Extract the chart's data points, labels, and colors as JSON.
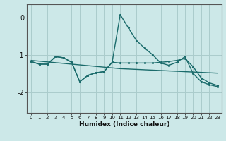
{
  "xlabel": "Humidex (Indice chaleur)",
  "background_color": "#cce8e8",
  "grid_color": "#aacccc",
  "line_color": "#1a6b6b",
  "xlim": [
    -0.5,
    23.5
  ],
  "ylim": [
    -2.55,
    0.35
  ],
  "yticks": [
    0,
    -1,
    -2
  ],
  "xticks": [
    0,
    1,
    2,
    3,
    4,
    5,
    6,
    7,
    8,
    9,
    10,
    11,
    12,
    13,
    14,
    15,
    16,
    17,
    18,
    19,
    20,
    21,
    22,
    23
  ],
  "line1_x": [
    0,
    1,
    2,
    3,
    4,
    5,
    6,
    7,
    8,
    9,
    10,
    11,
    12,
    13,
    14,
    15,
    16,
    17,
    18,
    19,
    20,
    21,
    22,
    23
  ],
  "line1_y": [
    -1.15,
    -1.17,
    -1.19,
    -1.21,
    -1.23,
    -1.25,
    -1.27,
    -1.29,
    -1.31,
    -1.33,
    -1.35,
    -1.37,
    -1.38,
    -1.39,
    -1.4,
    -1.41,
    -1.42,
    -1.43,
    -1.44,
    -1.45,
    -1.46,
    -1.47,
    -1.48,
    -1.49
  ],
  "line2_x": [
    0,
    1,
    2,
    3,
    4,
    5,
    6,
    7,
    8,
    9,
    10,
    11,
    12,
    13,
    14,
    15,
    16,
    17,
    18,
    19,
    20,
    21,
    22,
    23
  ],
  "line2_y": [
    -1.18,
    -1.25,
    -1.25,
    -1.05,
    -1.08,
    -1.2,
    -1.72,
    -1.55,
    -1.48,
    -1.45,
    -1.2,
    0.07,
    -0.28,
    -0.62,
    -0.82,
    -1.0,
    -1.22,
    -1.28,
    -1.2,
    -1.05,
    -1.5,
    -1.72,
    -1.8,
    -1.85
  ],
  "line3_x": [
    0,
    1,
    2,
    3,
    4,
    5,
    6,
    7,
    8,
    9,
    10,
    11,
    12,
    13,
    14,
    15,
    16,
    17,
    18,
    19,
    20,
    21,
    22,
    23
  ],
  "line3_y": [
    -1.18,
    -1.25,
    -1.25,
    -1.05,
    -1.08,
    -1.2,
    -1.72,
    -1.55,
    -1.48,
    -1.45,
    -1.2,
    -1.22,
    -1.22,
    -1.22,
    -1.22,
    -1.22,
    -1.2,
    -1.18,
    -1.15,
    -1.1,
    -1.32,
    -1.62,
    -1.75,
    -1.82
  ]
}
